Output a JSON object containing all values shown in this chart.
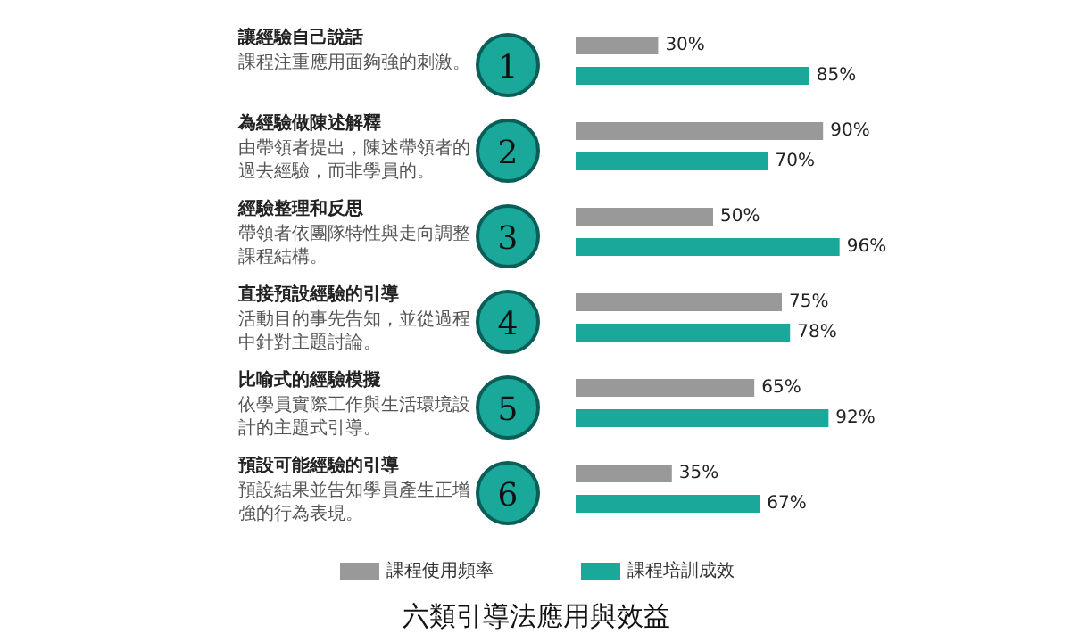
{
  "chart_data": {
    "type": "bar",
    "orientation": "horizontal",
    "title": "六類引導法應用與效益",
    "categories": [
      "讓經驗自己說話",
      "為經驗做陳述解釋",
      "經驗整理和反思",
      "直接預設經驗的引導",
      "比喻式的經驗模擬",
      "預設可能經驗的引導"
    ],
    "annotations": [
      "課程注重應用面夠強的刺激。",
      "由帶領者提出，陳述帶領者的過去經驗，而非學員的。",
      "帶領者依團隊特性與走向調整課程結構。",
      "活動目的事先告知，並從過程中針對主題討論。",
      "依學員實際工作與生活環境設計的主題式引導。",
      "預設結果並告知學員產生正增強的行為表現。",
      "1",
      "2",
      "3",
      "4",
      "5",
      "6"
    ],
    "series": [
      {
        "name": "課程使用頻率",
        "color": "#999999",
        "values": [
          30,
          90,
          50,
          75,
          65,
          35
        ],
        "value_labels": [
          "30%",
          "90%",
          "50%",
          "75%",
          "65%",
          "35%"
        ]
      },
      {
        "name": "課程培訓成效",
        "color": "#1aa89a",
        "values": [
          85,
          70,
          96,
          78,
          92,
          67
        ],
        "value_labels": [
          "85%",
          "70%",
          "96%",
          "78%",
          "92%",
          "67%"
        ]
      }
    ],
    "legend": "bottom"
  }
}
